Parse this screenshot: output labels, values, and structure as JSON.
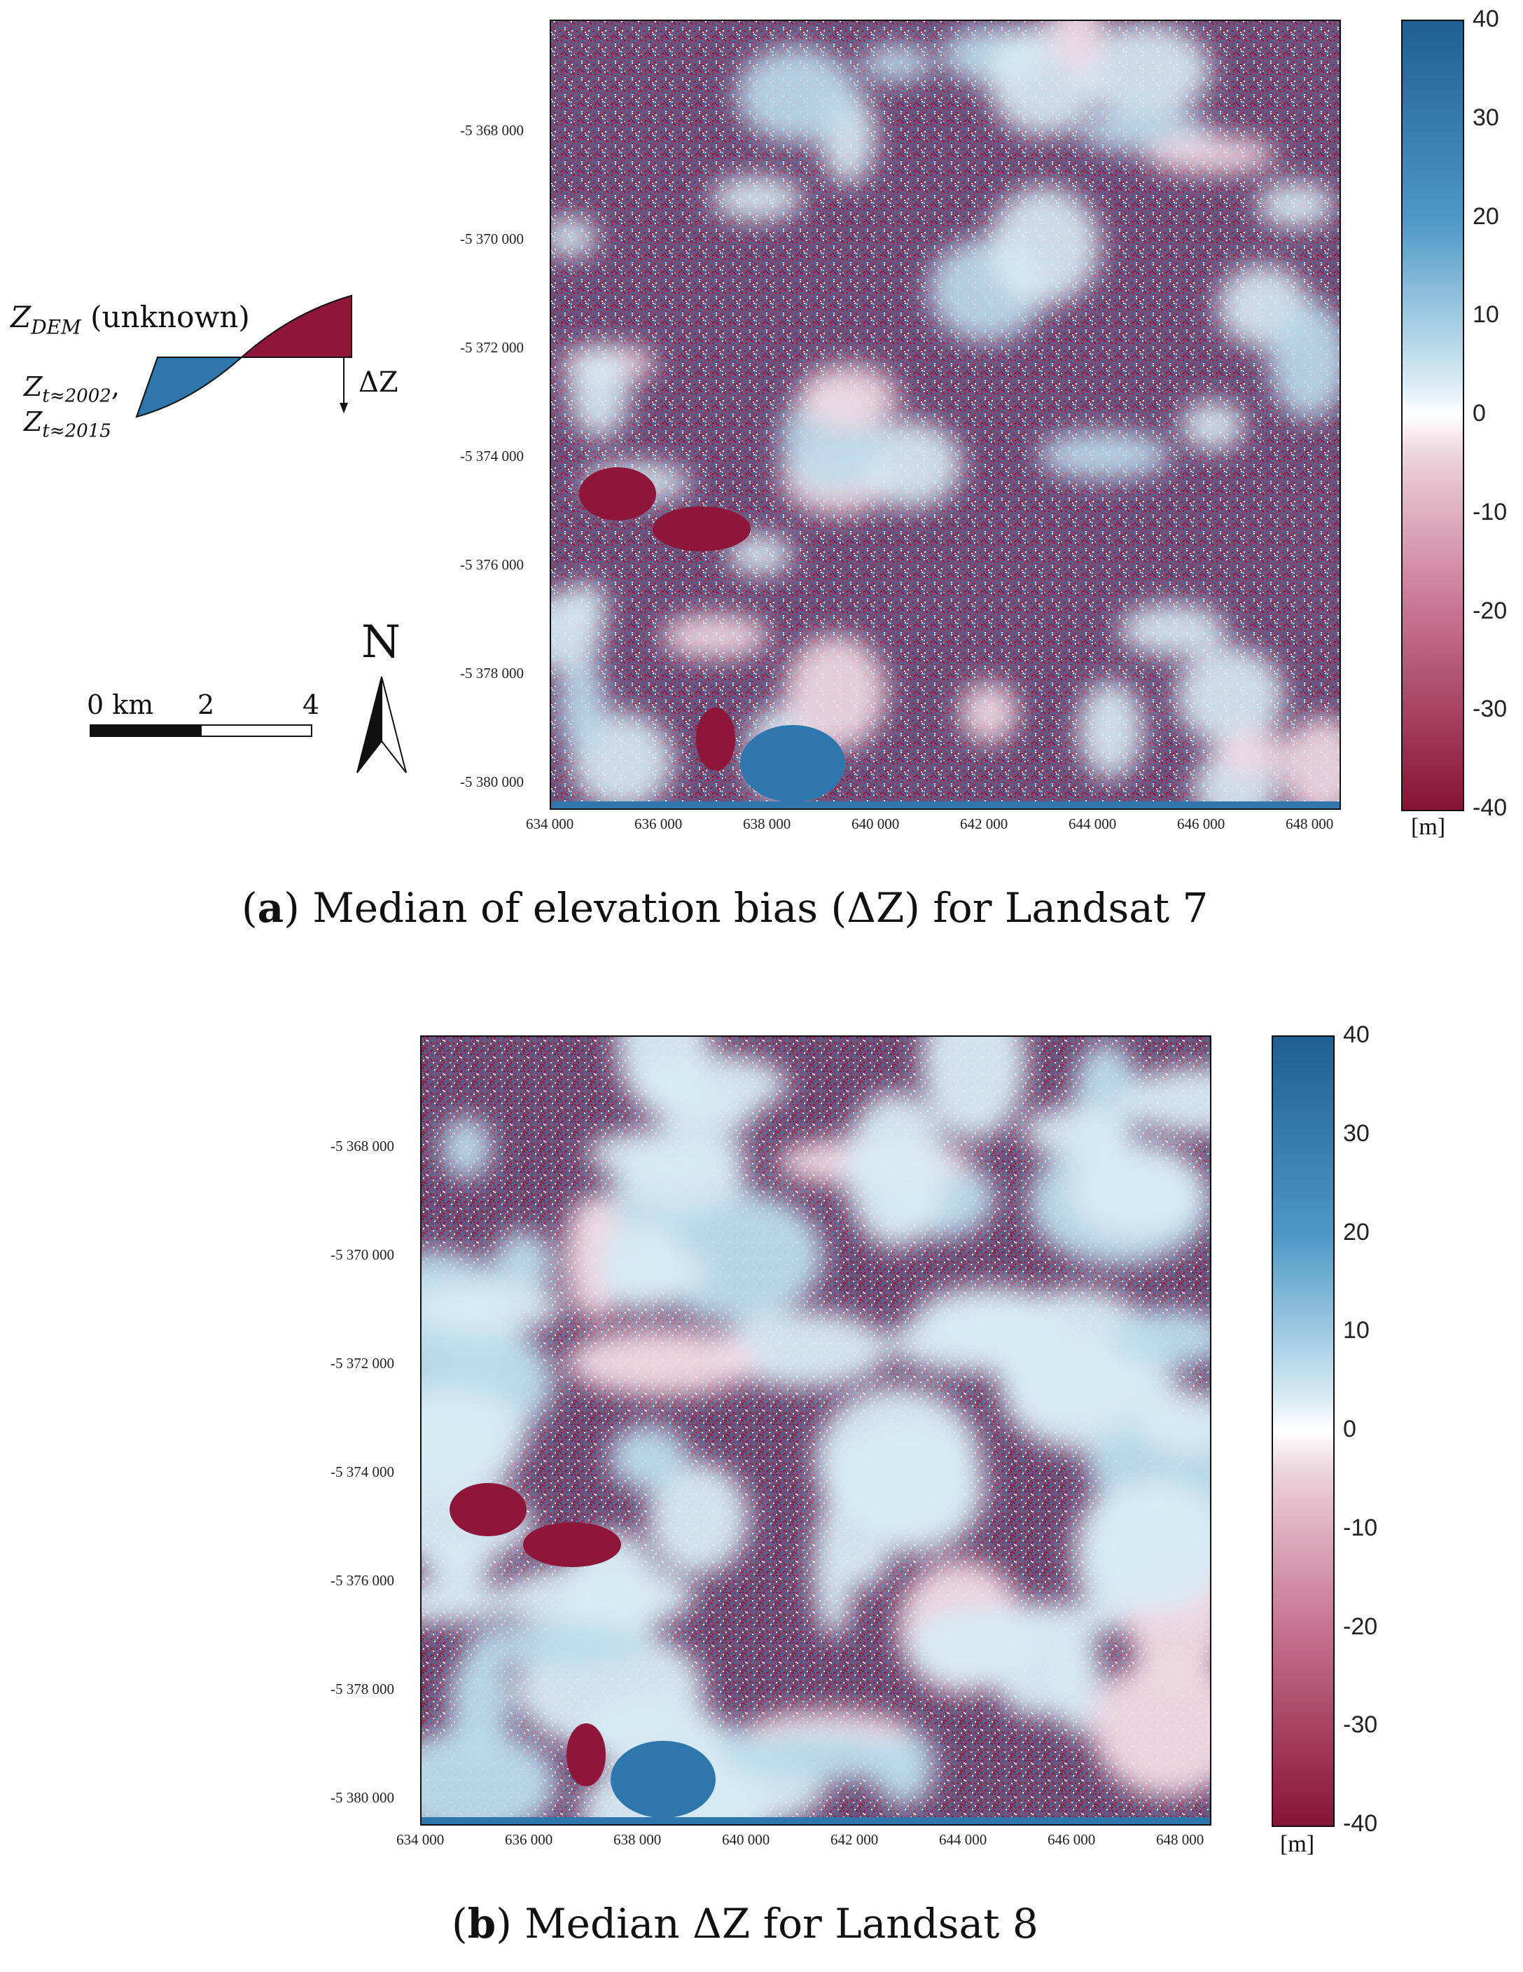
{
  "panels": [
    {
      "id": "a",
      "caption_letter": "a",
      "caption_text": "Median of elevation bias (ΔZ) for Landsat 7",
      "y_ticks": [
        "-5 368 000",
        "-5 370 000",
        "-5 372 000",
        "-5 374 000",
        "-5 376 000",
        "-5 378 000",
        "-5 380 000"
      ],
      "x_ticks": [
        "634 000",
        "636 000",
        "638 000",
        "640 000",
        "642 000",
        "644 000",
        "646 000",
        "648 000"
      ],
      "colorbar_ticks": [
        "40",
        "30",
        "20",
        "10",
        "0",
        "-10",
        "-20",
        "-30",
        "-40"
      ],
      "colorbar_unit": "[m]"
    },
    {
      "id": "b",
      "caption_letter": "b",
      "caption_text": "Median ΔZ for Landsat 8",
      "y_ticks": [
        "-5 368 000",
        "-5 370 000",
        "-5 372 000",
        "-5 374 000",
        "-5 376 000",
        "-5 378 000",
        "-5 380 000"
      ],
      "x_ticks": [
        "634 000",
        "636 000",
        "638 000",
        "640 000",
        "642 000",
        "644 000",
        "646 000",
        "648 000"
      ],
      "colorbar_ticks": [
        "40",
        "30",
        "20",
        "10",
        "0",
        "-10",
        "-20",
        "-30",
        "-40"
      ],
      "colorbar_unit": "[m]"
    }
  ],
  "inset": {
    "z_dem_main": "Z",
    "z_dem_sub": "DEM",
    "z_dem_suffix": "(unknown)",
    "z_t1_main": "Z",
    "z_t1_sub": "t≈2002",
    "z_t2_main": "Z",
    "z_t2_sub": "t≈2015",
    "delta_z": "ΔZ"
  },
  "scalebar": {
    "label_0": "0 km",
    "label_2": "2",
    "label_4": "4"
  },
  "north_arrow": {
    "label": "N"
  },
  "colors": {
    "positive": "#2e77ac",
    "negative": "#8e1639",
    "neutral": "#ffffff"
  }
}
